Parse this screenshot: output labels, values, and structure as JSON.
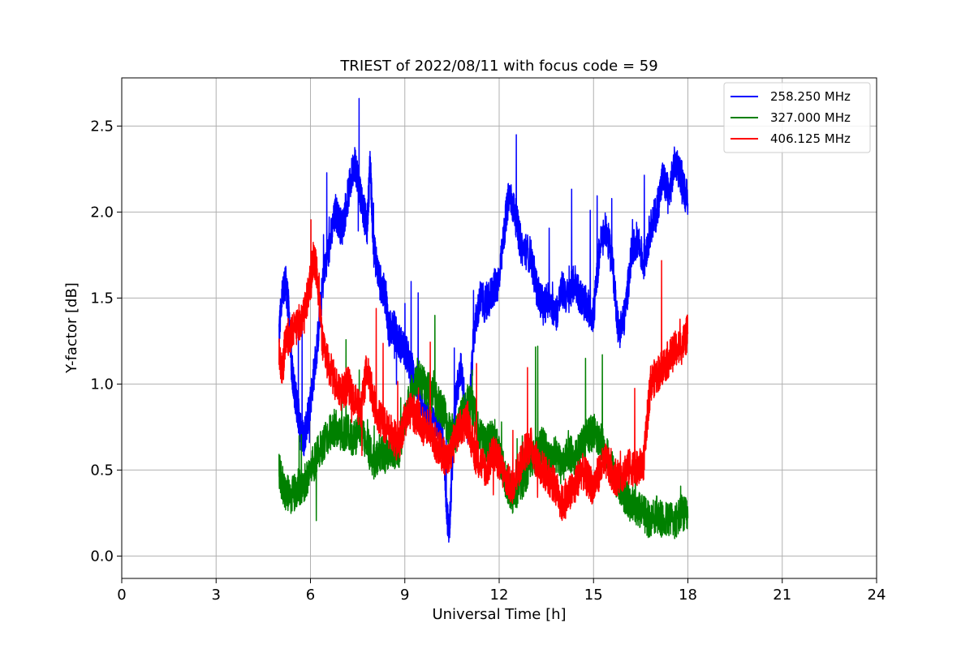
{
  "chart_data": {
    "type": "line",
    "title": "TRIEST of 2022/08/11 with focus code = 59",
    "xlabel": "Universal Time [h]",
    "ylabel": "Y-factor [dB]",
    "xlim": [
      0,
      24
    ],
    "ylim": [
      -0.13,
      2.78
    ],
    "xticks": [
      0,
      3,
      6,
      9,
      12,
      15,
      18,
      21,
      24
    ],
    "yticks": [
      0.0,
      0.5,
      1.0,
      1.5,
      2.0,
      2.5
    ],
    "ytick_labels": [
      "0.0",
      "0.5",
      "1.0",
      "1.5",
      "2.0",
      "2.5"
    ],
    "grid": true,
    "legend_position": "top-right",
    "series": [
      {
        "name": "258.250 MHz",
        "color": "#0000ff",
        "x": [
          5.0,
          5.1,
          5.2,
          5.3,
          5.4,
          5.5,
          5.6,
          5.7,
          5.8,
          5.9,
          6.0,
          6.2,
          6.4,
          6.6,
          6.8,
          7.0,
          7.2,
          7.4,
          7.5,
          7.6,
          7.8,
          7.9,
          8.0,
          8.2,
          8.4,
          8.5,
          8.6,
          8.8,
          9.0,
          9.2,
          9.4,
          9.6,
          9.8,
          10.0,
          10.2,
          10.3,
          10.4,
          10.5,
          10.6,
          10.8,
          11.0,
          11.2,
          11.4,
          11.6,
          11.8,
          12.0,
          12.2,
          12.3,
          12.5,
          12.7,
          13.0,
          13.2,
          13.4,
          13.6,
          13.8,
          14.0,
          14.2,
          14.4,
          14.6,
          14.8,
          15.0,
          15.2,
          15.4,
          15.6,
          15.8,
          16.0,
          16.2,
          16.4,
          16.6,
          16.8,
          17.0,
          17.2,
          17.4,
          17.6,
          17.8,
          18.0
        ],
        "values": [
          1.3,
          1.5,
          1.6,
          1.45,
          1.1,
          0.95,
          0.85,
          0.7,
          0.68,
          0.8,
          0.9,
          1.2,
          1.6,
          1.8,
          2.0,
          1.9,
          2.1,
          2.3,
          2.2,
          2.1,
          1.9,
          2.3,
          1.8,
          1.6,
          1.5,
          1.3,
          1.35,
          1.25,
          1.2,
          1.1,
          1.0,
          0.85,
          0.75,
          0.8,
          0.7,
          0.4,
          0.1,
          0.5,
          0.9,
          1.1,
          0.7,
          1.3,
          1.5,
          1.45,
          1.55,
          1.6,
          1.95,
          2.1,
          2.0,
          1.8,
          1.75,
          1.55,
          1.45,
          1.5,
          1.4,
          1.55,
          1.5,
          1.6,
          1.5,
          1.45,
          1.4,
          1.8,
          1.9,
          1.7,
          1.3,
          1.4,
          1.75,
          1.85,
          1.7,
          1.9,
          2.0,
          2.2,
          2.1,
          2.3,
          2.2,
          2.05
        ]
      },
      {
        "name": "327.000 MHz",
        "color": "#008000",
        "x": [
          5.0,
          5.1,
          5.2,
          5.4,
          5.6,
          5.8,
          6.0,
          6.2,
          6.4,
          6.6,
          6.8,
          7.0,
          7.2,
          7.4,
          7.6,
          7.8,
          8.0,
          8.2,
          8.4,
          8.6,
          8.8,
          9.0,
          9.2,
          9.4,
          9.6,
          9.8,
          10.0,
          10.2,
          10.4,
          10.6,
          10.8,
          11.0,
          11.2,
          11.4,
          11.6,
          11.8,
          12.0,
          12.2,
          12.4,
          12.6,
          12.8,
          13.0,
          13.2,
          13.4,
          13.6,
          13.8,
          14.0,
          14.2,
          14.4,
          14.6,
          14.8,
          15.0,
          15.2,
          15.4,
          15.6,
          15.8,
          16.0,
          16.2,
          16.4,
          16.6,
          16.8,
          17.0,
          17.2,
          17.4,
          17.6,
          17.8,
          18.0
        ],
        "values": [
          0.5,
          0.42,
          0.38,
          0.35,
          0.4,
          0.42,
          0.5,
          0.58,
          0.65,
          0.72,
          0.75,
          0.7,
          0.72,
          0.68,
          0.75,
          0.65,
          0.55,
          0.6,
          0.58,
          0.62,
          0.6,
          0.8,
          0.95,
          1.05,
          1.0,
          0.95,
          0.9,
          0.85,
          0.75,
          0.7,
          0.8,
          0.9,
          0.85,
          0.7,
          0.65,
          0.7,
          0.6,
          0.45,
          0.35,
          0.4,
          0.45,
          0.55,
          0.6,
          0.65,
          0.55,
          0.6,
          0.5,
          0.62,
          0.55,
          0.65,
          0.7,
          0.72,
          0.68,
          0.6,
          0.5,
          0.42,
          0.35,
          0.3,
          0.28,
          0.25,
          0.2,
          0.25,
          0.2,
          0.22,
          0.2,
          0.25,
          0.22
        ]
      },
      {
        "name": "406.125 MHz",
        "color": "#ff0000",
        "x": [
          5.0,
          5.1,
          5.2,
          5.4,
          5.6,
          5.8,
          6.0,
          6.1,
          6.2,
          6.4,
          6.6,
          6.8,
          7.0,
          7.2,
          7.4,
          7.6,
          7.8,
          8.0,
          8.2,
          8.4,
          8.6,
          8.8,
          9.0,
          9.2,
          9.4,
          9.6,
          9.8,
          10.0,
          10.2,
          10.4,
          10.6,
          10.8,
          11.0,
          11.2,
          11.4,
          11.6,
          11.8,
          12.0,
          12.2,
          12.4,
          12.6,
          12.8,
          13.0,
          13.2,
          13.4,
          13.6,
          13.8,
          14.0,
          14.2,
          14.4,
          14.6,
          14.8,
          15.0,
          15.2,
          15.4,
          15.6,
          15.8,
          16.0,
          16.2,
          16.4,
          16.6,
          16.8,
          17.0,
          17.2,
          17.4,
          17.6,
          17.8,
          18.0
        ],
        "values": [
          1.2,
          1.05,
          1.25,
          1.3,
          1.35,
          1.4,
          1.6,
          1.75,
          1.65,
          1.2,
          1.1,
          1.0,
          0.95,
          1.0,
          0.9,
          0.85,
          1.1,
          0.9,
          0.8,
          0.75,
          0.7,
          0.65,
          0.8,
          0.85,
          0.8,
          0.75,
          0.75,
          0.65,
          0.6,
          0.55,
          0.7,
          0.75,
          0.8,
          0.6,
          0.55,
          0.5,
          0.6,
          0.55,
          0.45,
          0.4,
          0.5,
          0.6,
          0.65,
          0.55,
          0.5,
          0.45,
          0.4,
          0.3,
          0.35,
          0.4,
          0.5,
          0.45,
          0.4,
          0.5,
          0.55,
          0.48,
          0.45,
          0.5,
          0.52,
          0.5,
          0.55,
          1.0,
          1.05,
          1.1,
          1.15,
          1.2,
          1.22,
          1.3
        ]
      }
    ]
  }
}
